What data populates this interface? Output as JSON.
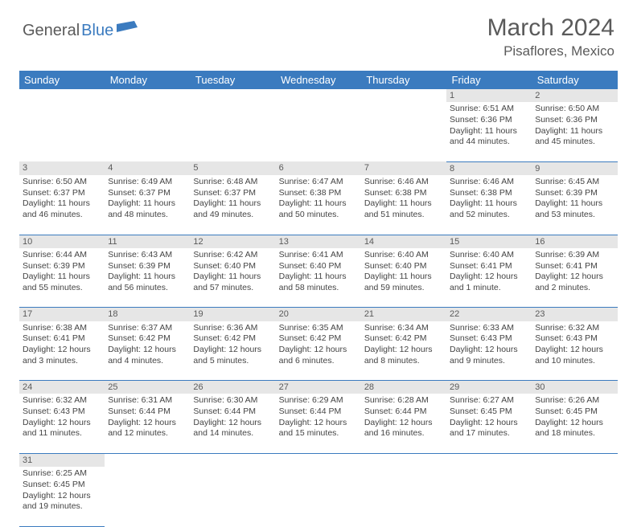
{
  "logo": {
    "general": "General",
    "blue": "Blue"
  },
  "title": "March 2024",
  "location": "Pisaflores, Mexico",
  "colors": {
    "header_bg": "#3b7bbf",
    "header_fg": "#ffffff",
    "daynum_bg": "#e6e6e6",
    "text": "#444444",
    "border": "#3b7bbf",
    "logo_gray": "#5a5a5a",
    "logo_blue": "#3b7bbf"
  },
  "day_headers": [
    "Sunday",
    "Monday",
    "Tuesday",
    "Wednesday",
    "Thursday",
    "Friday",
    "Saturday"
  ],
  "weeks": [
    [
      null,
      null,
      null,
      null,
      null,
      {
        "n": "1",
        "sr": "6:51 AM",
        "ss": "6:36 PM",
        "dl": "11 hours and 44 minutes."
      },
      {
        "n": "2",
        "sr": "6:50 AM",
        "ss": "6:36 PM",
        "dl": "11 hours and 45 minutes."
      }
    ],
    [
      {
        "n": "3",
        "sr": "6:50 AM",
        "ss": "6:37 PM",
        "dl": "11 hours and 46 minutes."
      },
      {
        "n": "4",
        "sr": "6:49 AM",
        "ss": "6:37 PM",
        "dl": "11 hours and 48 minutes."
      },
      {
        "n": "5",
        "sr": "6:48 AM",
        "ss": "6:37 PM",
        "dl": "11 hours and 49 minutes."
      },
      {
        "n": "6",
        "sr": "6:47 AM",
        "ss": "6:38 PM",
        "dl": "11 hours and 50 minutes."
      },
      {
        "n": "7",
        "sr": "6:46 AM",
        "ss": "6:38 PM",
        "dl": "11 hours and 51 minutes."
      },
      {
        "n": "8",
        "sr": "6:46 AM",
        "ss": "6:38 PM",
        "dl": "11 hours and 52 minutes."
      },
      {
        "n": "9",
        "sr": "6:45 AM",
        "ss": "6:39 PM",
        "dl": "11 hours and 53 minutes."
      }
    ],
    [
      {
        "n": "10",
        "sr": "6:44 AM",
        "ss": "6:39 PM",
        "dl": "11 hours and 55 minutes."
      },
      {
        "n": "11",
        "sr": "6:43 AM",
        "ss": "6:39 PM",
        "dl": "11 hours and 56 minutes."
      },
      {
        "n": "12",
        "sr": "6:42 AM",
        "ss": "6:40 PM",
        "dl": "11 hours and 57 minutes."
      },
      {
        "n": "13",
        "sr": "6:41 AM",
        "ss": "6:40 PM",
        "dl": "11 hours and 58 minutes."
      },
      {
        "n": "14",
        "sr": "6:40 AM",
        "ss": "6:40 PM",
        "dl": "11 hours and 59 minutes."
      },
      {
        "n": "15",
        "sr": "6:40 AM",
        "ss": "6:41 PM",
        "dl": "12 hours and 1 minute."
      },
      {
        "n": "16",
        "sr": "6:39 AM",
        "ss": "6:41 PM",
        "dl": "12 hours and 2 minutes."
      }
    ],
    [
      {
        "n": "17",
        "sr": "6:38 AM",
        "ss": "6:41 PM",
        "dl": "12 hours and 3 minutes."
      },
      {
        "n": "18",
        "sr": "6:37 AM",
        "ss": "6:42 PM",
        "dl": "12 hours and 4 minutes."
      },
      {
        "n": "19",
        "sr": "6:36 AM",
        "ss": "6:42 PM",
        "dl": "12 hours and 5 minutes."
      },
      {
        "n": "20",
        "sr": "6:35 AM",
        "ss": "6:42 PM",
        "dl": "12 hours and 6 minutes."
      },
      {
        "n": "21",
        "sr": "6:34 AM",
        "ss": "6:42 PM",
        "dl": "12 hours and 8 minutes."
      },
      {
        "n": "22",
        "sr": "6:33 AM",
        "ss": "6:43 PM",
        "dl": "12 hours and 9 minutes."
      },
      {
        "n": "23",
        "sr": "6:32 AM",
        "ss": "6:43 PM",
        "dl": "12 hours and 10 minutes."
      }
    ],
    [
      {
        "n": "24",
        "sr": "6:32 AM",
        "ss": "6:43 PM",
        "dl": "12 hours and 11 minutes."
      },
      {
        "n": "25",
        "sr": "6:31 AM",
        "ss": "6:44 PM",
        "dl": "12 hours and 12 minutes."
      },
      {
        "n": "26",
        "sr": "6:30 AM",
        "ss": "6:44 PM",
        "dl": "12 hours and 14 minutes."
      },
      {
        "n": "27",
        "sr": "6:29 AM",
        "ss": "6:44 PM",
        "dl": "12 hours and 15 minutes."
      },
      {
        "n": "28",
        "sr": "6:28 AM",
        "ss": "6:44 PM",
        "dl": "12 hours and 16 minutes."
      },
      {
        "n": "29",
        "sr": "6:27 AM",
        "ss": "6:45 PM",
        "dl": "12 hours and 17 minutes."
      },
      {
        "n": "30",
        "sr": "6:26 AM",
        "ss": "6:45 PM",
        "dl": "12 hours and 18 minutes."
      }
    ],
    [
      {
        "n": "31",
        "sr": "6:25 AM",
        "ss": "6:45 PM",
        "dl": "12 hours and 19 minutes."
      },
      null,
      null,
      null,
      null,
      null,
      null
    ]
  ],
  "labels": {
    "sunrise": "Sunrise: ",
    "sunset": "Sunset: ",
    "daylight": "Daylight: "
  }
}
